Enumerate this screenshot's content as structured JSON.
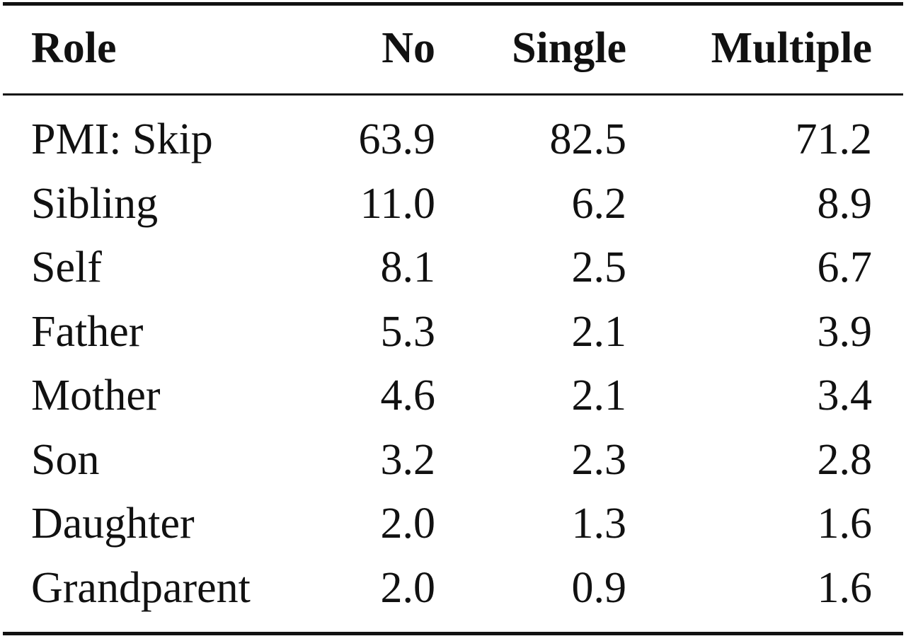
{
  "table": {
    "header": [
      "Role",
      "No",
      "Single",
      "Multiple"
    ],
    "rows": [
      [
        "PMI: Skip",
        "63.9",
        "82.5",
        "71.2"
      ],
      [
        "Sibling",
        "11.0",
        "6.2",
        "8.9"
      ],
      [
        "Self",
        "8.1",
        "2.5",
        "6.7"
      ],
      [
        "Father",
        "5.3",
        "2.1",
        "3.9"
      ],
      [
        "Mother",
        "4.6",
        "2.1",
        "3.4"
      ],
      [
        "Son",
        "3.2",
        "2.3",
        "2.8"
      ],
      [
        "Daughter",
        "2.0",
        "1.3",
        "1.6"
      ],
      [
        "Grandparent",
        "2.0",
        "0.9",
        "1.6"
      ]
    ]
  }
}
